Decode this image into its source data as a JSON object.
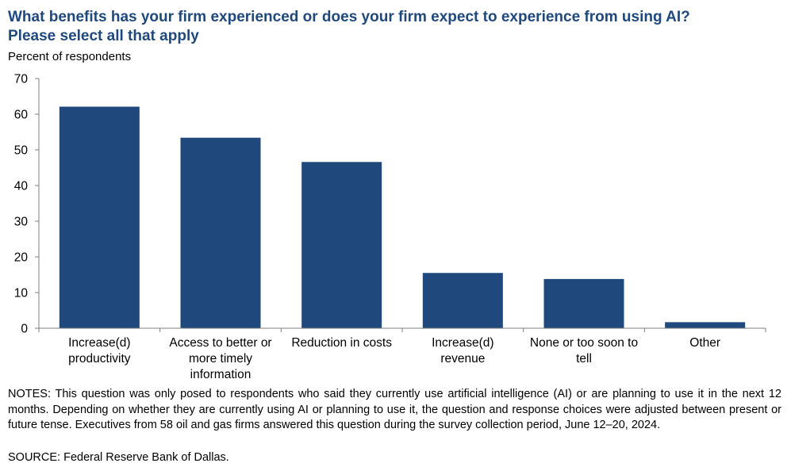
{
  "title_line1": "What benefits has your firm experienced or does your firm expect to experience from using AI?",
  "title_line2": "Please select all that apply",
  "colors": {
    "bar": "#1f497d",
    "title": "#1f497d",
    "axis": "#7f7f7f"
  },
  "chart_data": {
    "type": "bar",
    "ylabel": "Percent of respondents",
    "xlabel": "",
    "ylim": [
      0,
      70
    ],
    "yticks": [
      0,
      10,
      20,
      30,
      40,
      50,
      60,
      70
    ],
    "grid": false,
    "categories": [
      [
        "Increase(d)",
        "productivity"
      ],
      [
        "Access to better or",
        "more timely",
        "information"
      ],
      [
        "Reduction in costs"
      ],
      [
        "Increase(d)",
        "revenue"
      ],
      [
        "None or too soon to",
        "tell"
      ],
      [
        "Other"
      ]
    ],
    "values": [
      62.1,
      53.4,
      46.6,
      15.5,
      13.8,
      1.7
    ]
  },
  "notes": "NOTES: This question was only posed to respondents who said they currently use artificial intelligence (AI) or are planning to use it in the next 12 months. Depending on whether they are currently using AI or planning to use it, the question and response choices were adjusted between present or future tense. Executives from 58 oil and gas firms answered this question during the survey collection period, June 12–20, 2024.",
  "source": "SOURCE: Federal Reserve Bank of Dallas."
}
